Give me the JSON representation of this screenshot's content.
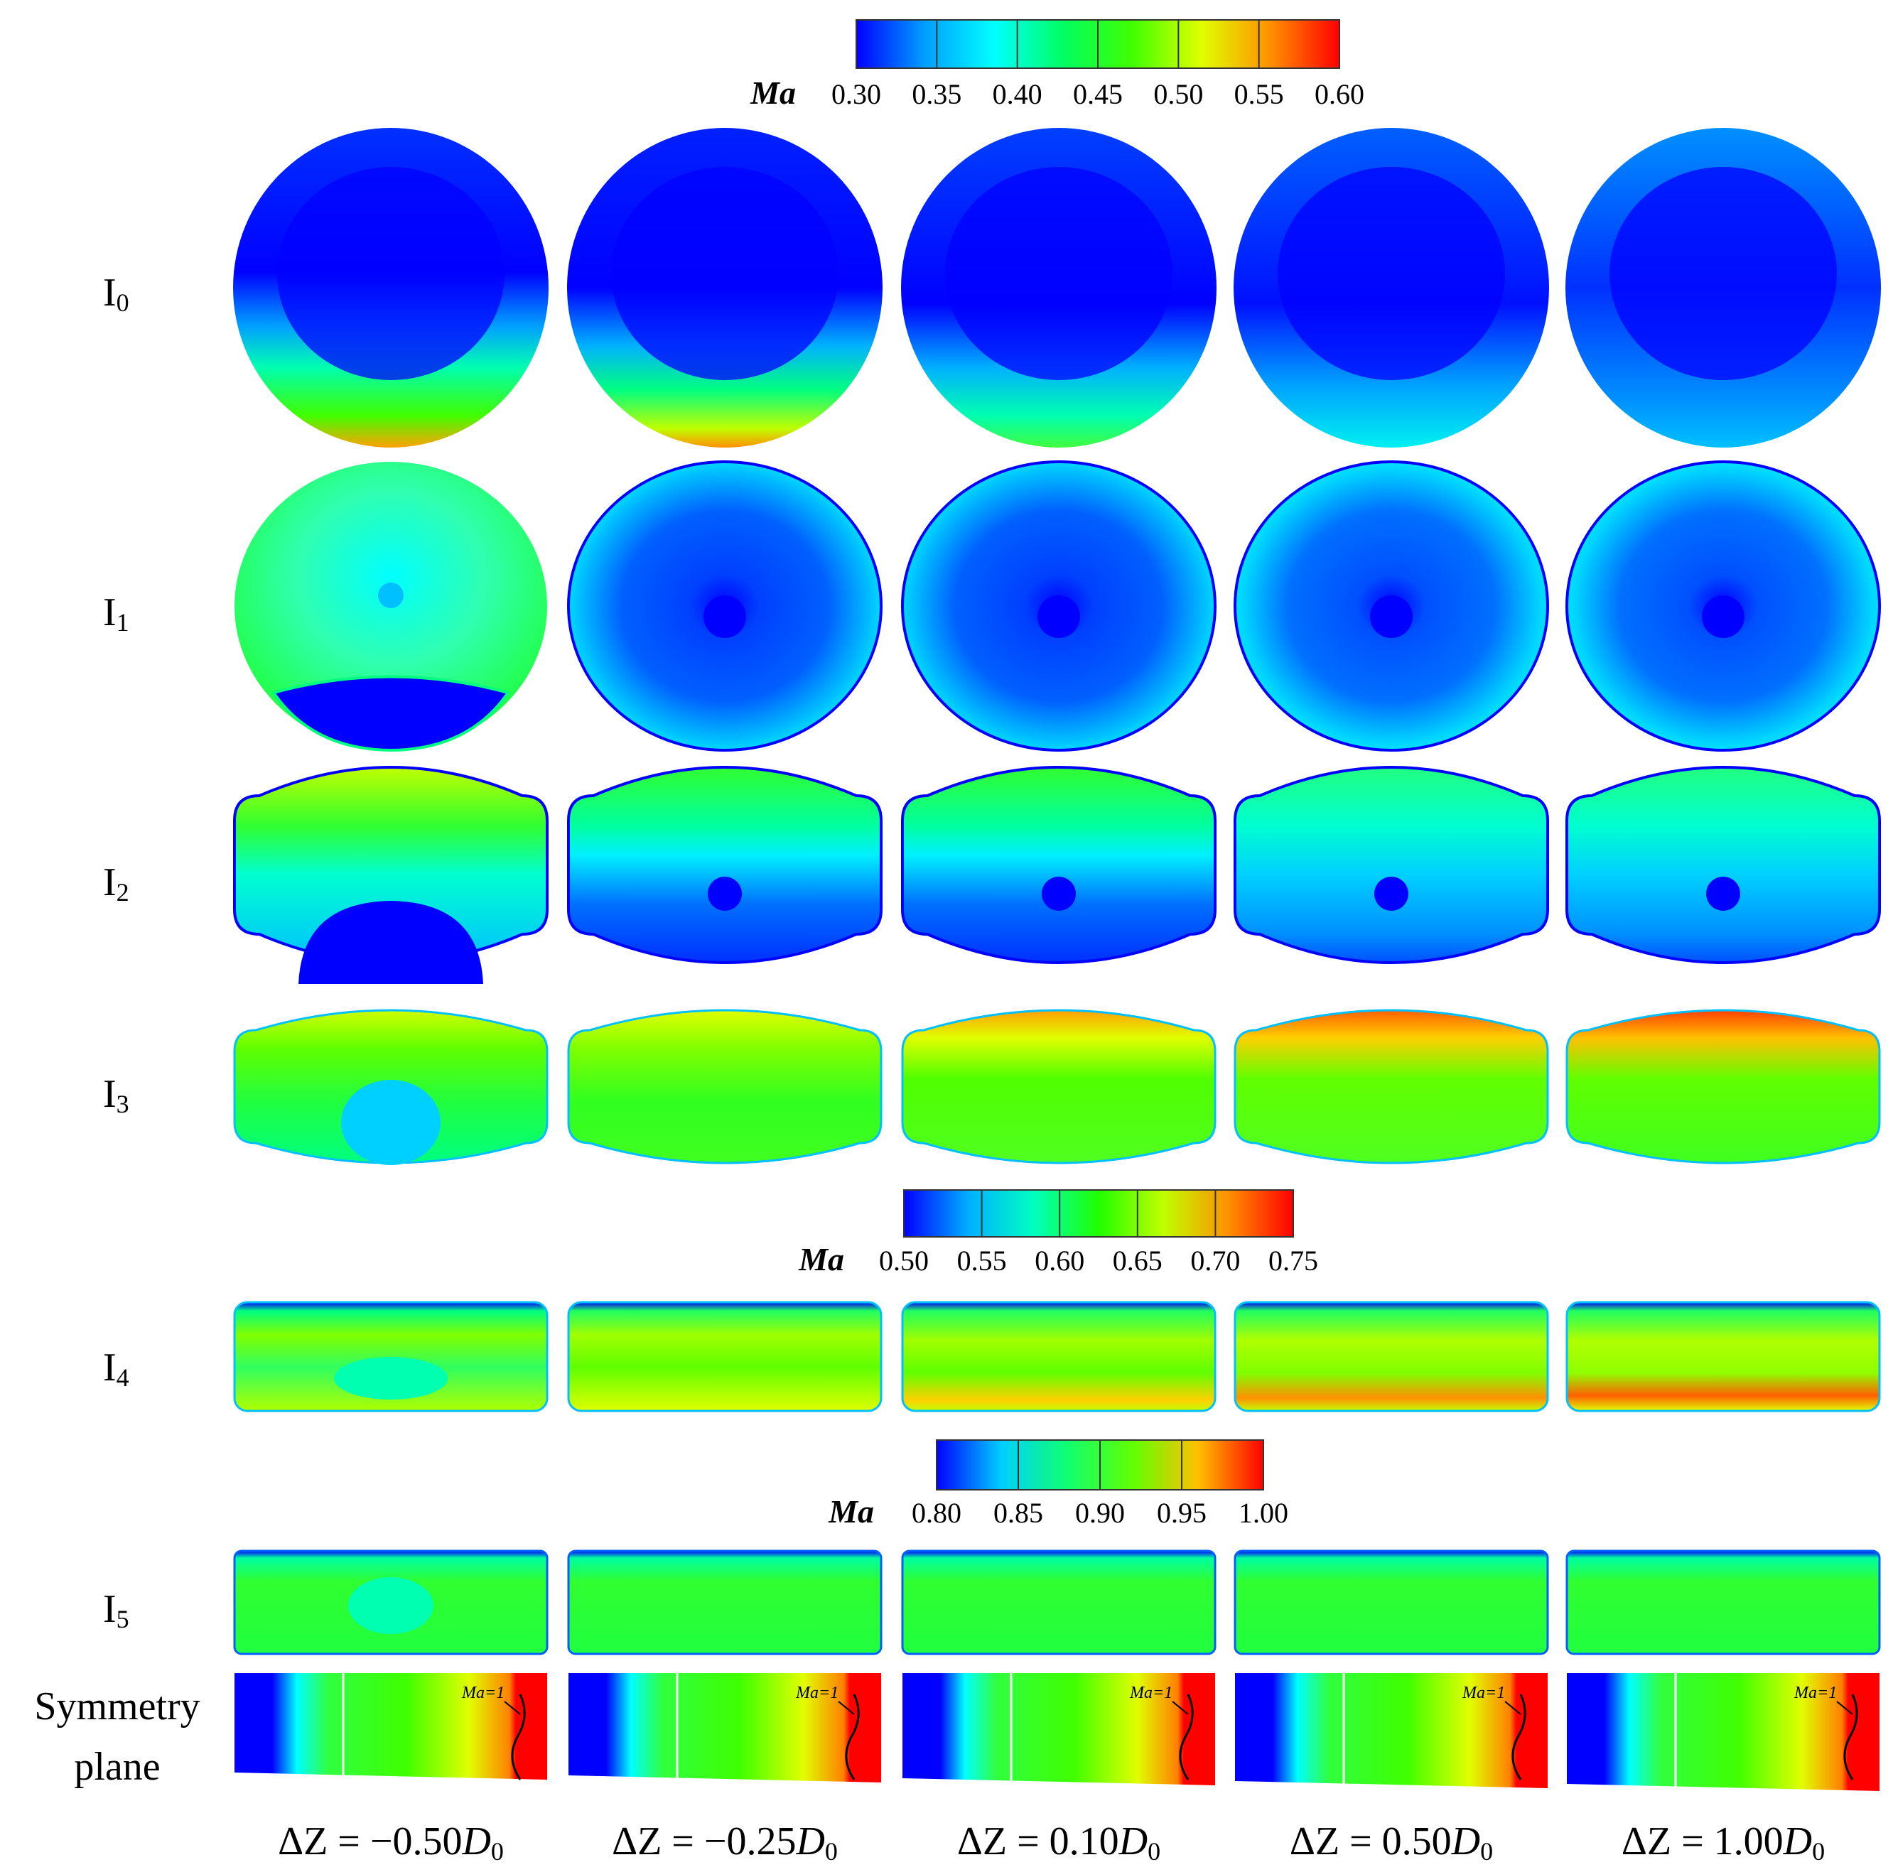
{
  "colorbars": [
    {
      "id": "cb1",
      "label": "Ma",
      "ticks": [
        "0.30",
        "0.35",
        "0.40",
        "0.45",
        "0.50",
        "0.55",
        "0.60"
      ],
      "stops": [
        "#0000ff",
        "#00a0ff",
        "#00ffff",
        "#00ff60",
        "#40ff00",
        "#e0ff00",
        "#ff9000",
        "#ff0000"
      ]
    },
    {
      "id": "cb2",
      "label": "Ma",
      "ticks": [
        "0.50",
        "0.55",
        "0.60",
        "0.65",
        "0.70",
        "0.75"
      ],
      "stops": [
        "#0000ff",
        "#00b0ff",
        "#00ffc0",
        "#20ff00",
        "#c0ff00",
        "#ff9000",
        "#ff0000"
      ]
    },
    {
      "id": "cb3",
      "label": "Ma",
      "ticks": [
        "0.80",
        "0.85",
        "0.90",
        "0.95",
        "1.00"
      ],
      "stops": [
        "#0000ff",
        "#00d0ff",
        "#10ff70",
        "#60ff00",
        "#ffc000",
        "#ff0000"
      ]
    }
  ],
  "rows": [
    {
      "name": "I",
      "sub": "0"
    },
    {
      "name": "I",
      "sub": "1"
    },
    {
      "name": "I",
      "sub": "2"
    },
    {
      "name": "I",
      "sub": "3"
    },
    {
      "name": "I",
      "sub": "4"
    },
    {
      "name": "I",
      "sub": "5"
    }
  ],
  "symmetry_label": [
    "Symmetry",
    "plane"
  ],
  "sonic_label": "Ma=1",
  "columns": [
    {
      "prefix": "ΔZ = −0.50",
      "var": "D",
      "sub": "0"
    },
    {
      "prefix": "ΔZ = −0.25",
      "var": "D",
      "sub": "0"
    },
    {
      "prefix": "ΔZ = 0.10",
      "var": "D",
      "sub": "0"
    },
    {
      "prefix": "ΔZ = 0.50",
      "var": "D",
      "sub": "0"
    },
    {
      "prefix": "ΔZ = 1.00",
      "var": "D",
      "sub": "0"
    }
  ],
  "colors": {
    "blue": "#0000ff",
    "cyan": "#00ffff",
    "skyblue": "#00b4ff",
    "green": "#20ff20",
    "yellowgreen": "#a0ff00",
    "yellow": "#ffff00",
    "orange": "#ff9000",
    "red": "#ff0000"
  }
}
